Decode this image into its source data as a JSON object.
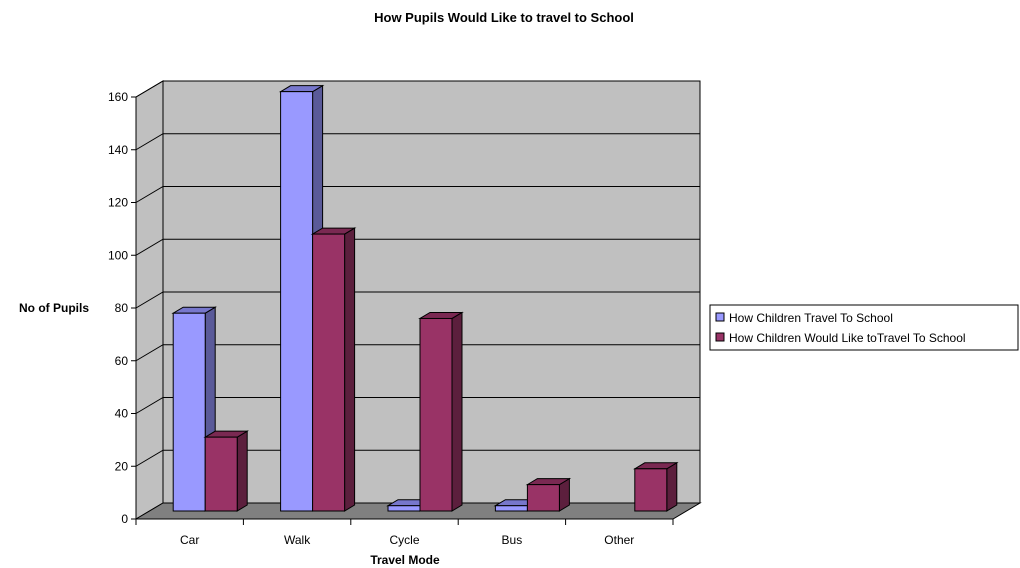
{
  "chart_data": {
    "type": "bar",
    "title": "How Pupils Would Like to travel to School",
    "xlabel": "Travel Mode",
    "ylabel": "No of Pupils",
    "categories": [
      "Car",
      "Walk",
      "Cycle",
      "Bus",
      "Other"
    ],
    "series": [
      {
        "name": "How Children Travel To School",
        "values": [
          75,
          159,
          2,
          2,
          0
        ],
        "color": "#9999ff",
        "side_color": "#5a5a99",
        "top_color": "#7777cc"
      },
      {
        "name": "How Children Would Like toTravel To School",
        "values": [
          28,
          105,
          73,
          10,
          16
        ],
        "color": "#993366",
        "side_color": "#5c1f3d",
        "top_color": "#7a2952"
      }
    ],
    "ylim": [
      0,
      160
    ],
    "yticks": [
      0,
      20,
      40,
      60,
      80,
      100,
      120,
      140,
      160
    ],
    "grid": true,
    "three_d": true,
    "wall_color": "#c0c0c0",
    "floor_color": "#808080",
    "legend_position": "right"
  }
}
